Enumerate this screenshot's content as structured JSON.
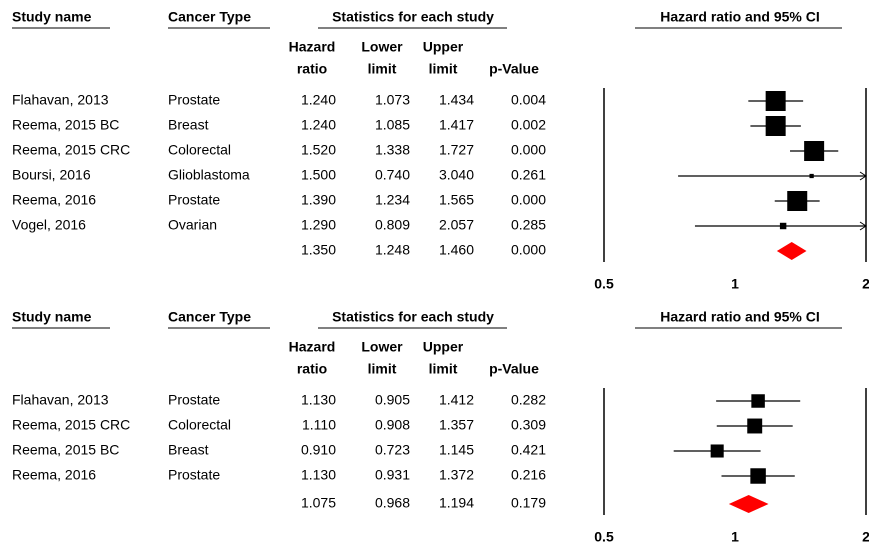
{
  "chart_data": [
    {
      "type": "forest",
      "headers": {
        "study": "Study name",
        "cancer": "Cancer Type",
        "stats": "Statistics for each study",
        "plot": "Hazard ratio and 95% CI",
        "hr": [
          "Hazard",
          "ratio"
        ],
        "lower": [
          "Lower",
          "limit"
        ],
        "upper": [
          "Upper",
          "limit"
        ],
        "p": "p-Value"
      },
      "studies": [
        "Flahavan, 2013",
        "Reema, 2015 BC",
        "Reema, 2015 CRC",
        "Boursi, 2016",
        "Reema, 2016",
        "Vogel, 2016"
      ],
      "cancer_types": [
        "Prostate",
        "Breast",
        "Colorectal",
        "Glioblastoma",
        "Prostate",
        "Ovarian"
      ],
      "hr": {
        "values": [
          1.24,
          1.24,
          1.52,
          1.5,
          1.39,
          1.29
        ],
        "value_labels": [
          "1.240",
          "1.240",
          "1.520",
          "1.500",
          "1.390",
          "1.290"
        ]
      },
      "lower": {
        "values": [
          1.073,
          1.085,
          1.338,
          0.74,
          1.234,
          0.809
        ],
        "value_labels": [
          "1.073",
          "1.085",
          "1.338",
          "0.740",
          "1.234",
          "0.809"
        ]
      },
      "upper": {
        "values": [
          1.434,
          1.417,
          1.727,
          3.04,
          1.565,
          2.057
        ],
        "value_labels": [
          "1.434",
          "1.417",
          "1.727",
          "3.040",
          "1.565",
          "2.057"
        ]
      },
      "p": {
        "values": [
          0.004,
          0.002,
          0,
          0.261,
          0,
          0.285
        ],
        "value_labels": [
          "0.004",
          "0.002",
          "0.000",
          "0.261",
          "0.000",
          "0.285"
        ]
      },
      "summary": {
        "hr": 1.35,
        "hr_label": "1.350",
        "lower": 1.248,
        "lower_label": "1.248",
        "upper": 1.46,
        "upper_label": "1.460",
        "p": 0,
        "p_label": "0.000",
        "color": "#ff0000"
      },
      "xlim": [
        0.5,
        2
      ],
      "xticks": [
        0.5,
        1,
        2
      ],
      "log_scale": true,
      "color": "#000000"
    },
    {
      "type": "forest",
      "headers": {
        "study": "Study name",
        "cancer": "Cancer Type",
        "stats": "Statistics for each study",
        "plot": "Hazard ratio and 95% CI",
        "hr": [
          "Hazard",
          "ratio"
        ],
        "lower": [
          "Lower",
          "limit"
        ],
        "upper": [
          "Upper",
          "limit"
        ],
        "p": "p-Value"
      },
      "studies": [
        "Flahavan, 2013",
        "Reema, 2015 CRC",
        "Reema, 2015 BC",
        "Reema, 2016"
      ],
      "cancer_types": [
        "Prostate",
        "Colorectal",
        "Breast",
        "Prostate"
      ],
      "hr": {
        "values": [
          1.13,
          1.11,
          0.91,
          1.13
        ],
        "value_labels": [
          "1.130",
          "1.110",
          "0.910",
          "1.130"
        ]
      },
      "lower": {
        "values": [
          0.905,
          0.908,
          0.723,
          0.931
        ],
        "value_labels": [
          "0.905",
          "0.908",
          "0.723",
          "0.931"
        ]
      },
      "upper": {
        "values": [
          1.412,
          1.357,
          1.145,
          1.372
        ],
        "value_labels": [
          "1.412",
          "1.357",
          "1.145",
          "1.372"
        ]
      },
      "p": {
        "values": [
          0.282,
          0.309,
          0.421,
          0.216
        ],
        "value_labels": [
          "0.282",
          "0.309",
          "0.421",
          "0.216"
        ]
      },
      "summary": {
        "hr": 1.075,
        "hr_label": "1.075",
        "lower": 0.968,
        "lower_label": "0.968",
        "upper": 1.194,
        "upper_label": "1.194",
        "p": 0.179,
        "p_label": "0.179",
        "color": "#ff0000"
      },
      "xlim": [
        0.5,
        2
      ],
      "xticks": [
        0.5,
        1,
        2
      ],
      "log_scale": true,
      "color": "#000000"
    }
  ]
}
